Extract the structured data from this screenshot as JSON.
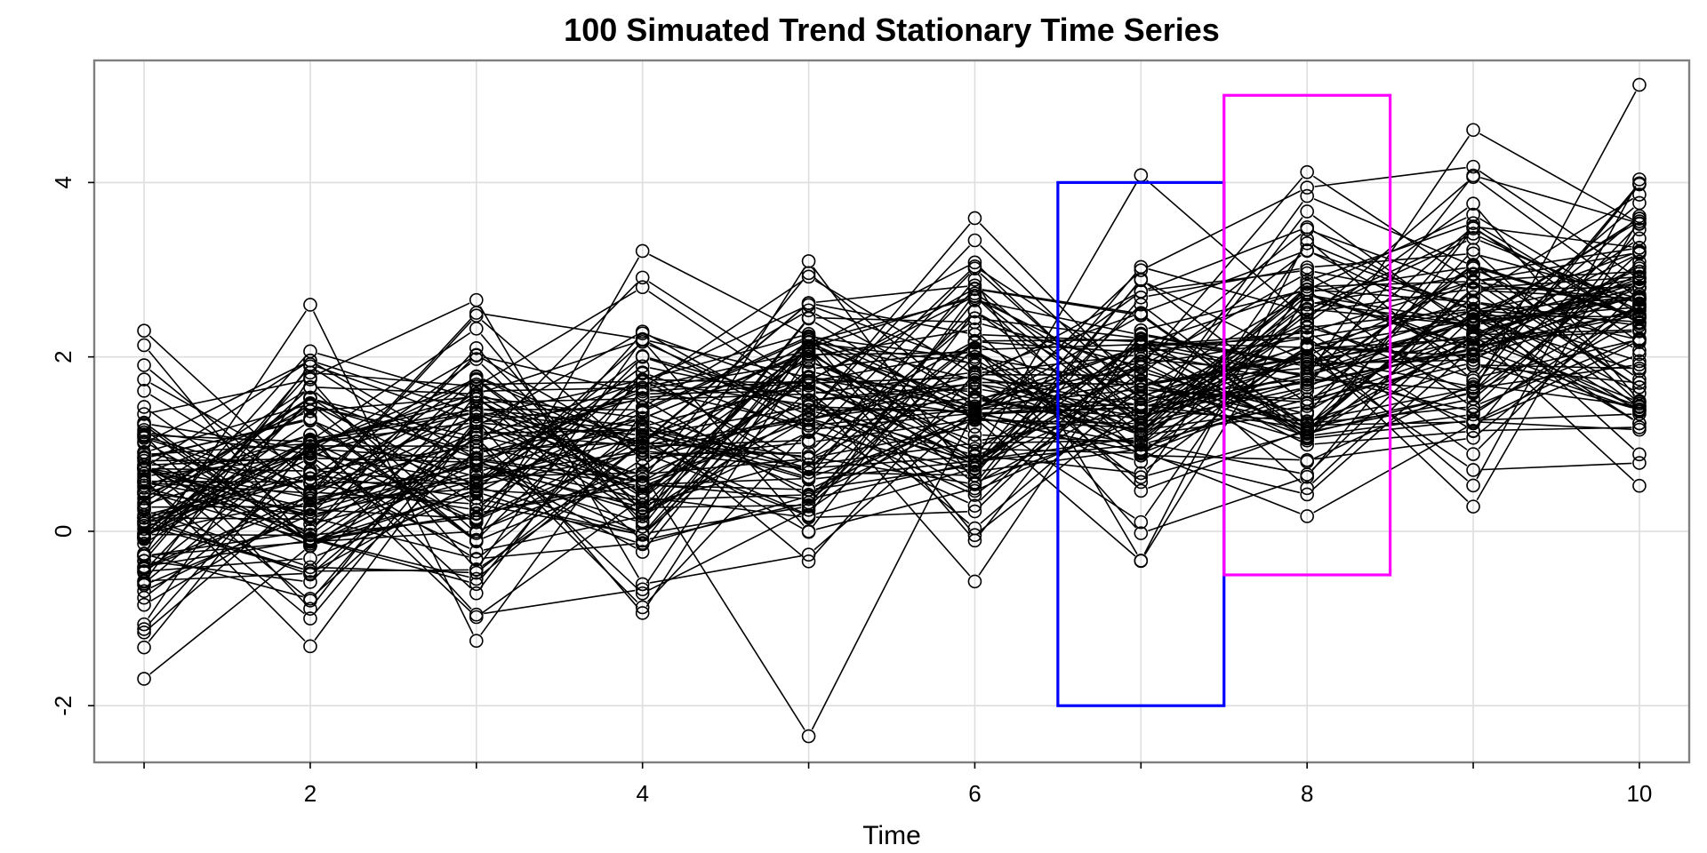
{
  "chart_data": {
    "type": "line",
    "title": "100 Simuated Trend Stationary Time Series",
    "xlabel": "Time",
    "ylabel": "",
    "xlim": [
      0.7,
      10.3
    ],
    "ylim": [
      -2.65,
      5.4
    ],
    "x": [
      1,
      2,
      3,
      4,
      5,
      6,
      7,
      8,
      9,
      10
    ],
    "x_ticks": [
      2,
      4,
      6,
      8,
      10
    ],
    "x_minor_ticks": [
      1,
      3,
      5,
      7,
      9
    ],
    "y_ticks": [
      -2,
      0,
      2,
      4
    ],
    "grid": true,
    "legend": "none",
    "n_series": 100,
    "series_shape": "each series is y[t] = 0.25*t + noise, noise ~ Normal(0, 0.8), drawn with lines and open circles at t = 1..10",
    "trend": {
      "intercept": 0.0,
      "slope": 0.25,
      "noise_sd": 0.8
    },
    "extremes": {
      "min": {
        "x": 5,
        "y": -2.35
      },
      "max": {
        "x": 10,
        "y": 5.12
      }
    },
    "highlight_boxes": [
      {
        "name": "blue-box",
        "x": [
          6.5,
          7.5
        ],
        "y": [
          -2,
          4
        ],
        "color": "#0000ff"
      },
      {
        "name": "magenta-box",
        "x": [
          7.5,
          8.5
        ],
        "y": [
          -0.5,
          5
        ],
        "color": "#ff00ff"
      }
    ]
  }
}
